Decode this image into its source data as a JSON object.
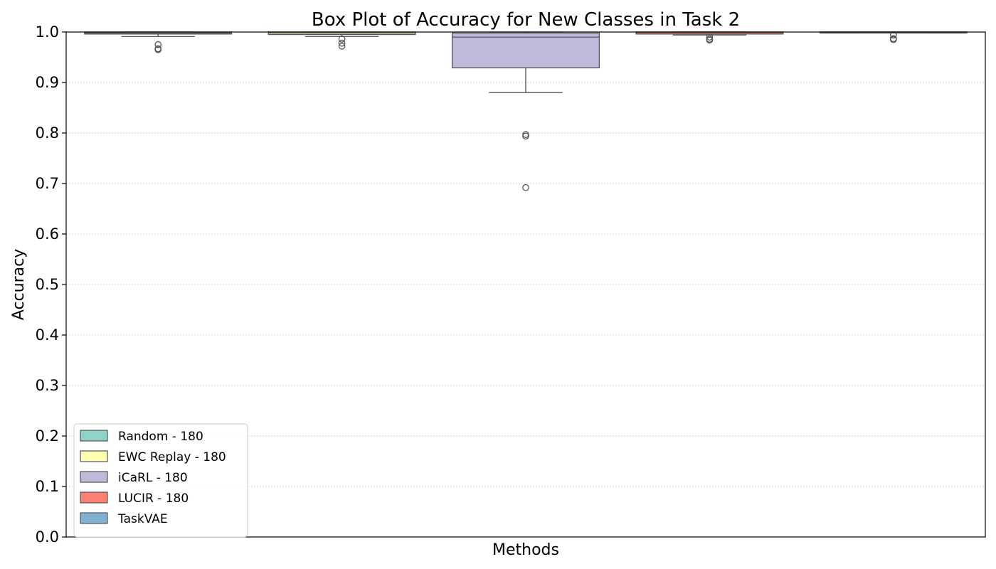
{
  "chart_data": {
    "type": "box",
    "title": "Box Plot of Accuracy for New Classes in Task 2",
    "xlabel": "Methods",
    "ylabel": "Accuracy",
    "ylim": [
      0.0,
      1.0
    ],
    "yticks": [
      "0.0",
      "0.1",
      "0.2",
      "0.3",
      "0.4",
      "0.5",
      "0.6",
      "0.7",
      "0.8",
      "0.9",
      "1.0"
    ],
    "grid": "y",
    "legend_position": "lower-left",
    "series": [
      {
        "name": "Random - 180",
        "color": "#8dd3c7",
        "whisker_low": 0.991,
        "q1": 0.996,
        "median": 0.998,
        "q3": 1.0,
        "whisker_high": 1.0,
        "outliers": [
          0.975,
          0.967,
          0.965
        ]
      },
      {
        "name": "EWC Replay - 180",
        "color": "#ffffb3",
        "whisker_low": 0.991,
        "q1": 0.995,
        "median": 0.998,
        "q3": 1.0,
        "whisker_high": 1.0,
        "outliers": [
          0.986,
          0.978,
          0.972
        ]
      },
      {
        "name": "iCaRL - 180",
        "color": "#bebada",
        "whisker_low": 0.88,
        "q1": 0.929,
        "median": 0.99,
        "q3": 0.998,
        "whisker_high": 1.0,
        "outliers": [
          0.797,
          0.794,
          0.692
        ]
      },
      {
        "name": "LUCIR - 180",
        "color": "#fb8072",
        "whisker_low": 0.994,
        "q1": 0.996,
        "median": 0.999,
        "q3": 1.0,
        "whisker_high": 1.0,
        "outliers": [
          0.99,
          0.986,
          0.984
        ]
      },
      {
        "name": "TaskVAE",
        "color": "#80b1d3",
        "whisker_low": 0.999,
        "q1": 0.999,
        "median": 1.0,
        "q3": 1.0,
        "whisker_high": 1.0,
        "outliers": [
          0.994,
          0.987,
          0.985
        ]
      }
    ]
  }
}
